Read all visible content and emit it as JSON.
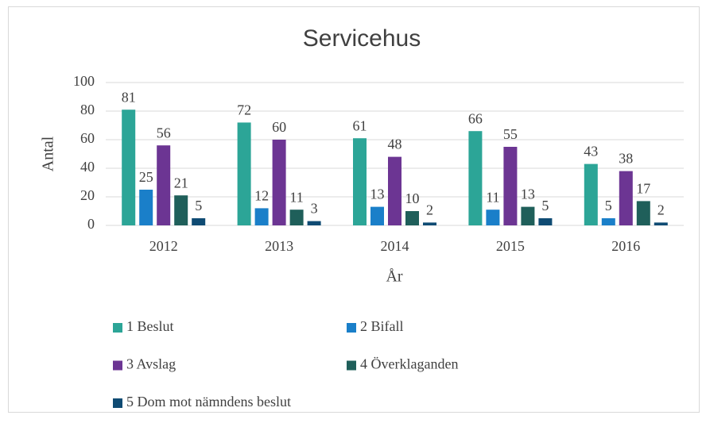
{
  "chart_data": {
    "type": "bar",
    "title": "Servicehus",
    "xlabel": "År",
    "ylabel": "Antal",
    "categories": [
      "2012",
      "2013",
      "2014",
      "2015",
      "2016"
    ],
    "series": [
      {
        "name": "1 Beslut",
        "color": "#2ca597",
        "values": [
          81,
          72,
          61,
          66,
          43
        ]
      },
      {
        "name": "2 Bifall",
        "color": "#1a7fc9",
        "values": [
          25,
          12,
          13,
          11,
          5
        ]
      },
      {
        "name": "3 Avslag",
        "color": "#6c3593",
        "values": [
          56,
          60,
          48,
          55,
          38
        ]
      },
      {
        "name": "4 Överklaganden",
        "color": "#1f5f5a",
        "values": [
          21,
          11,
          10,
          13,
          17
        ]
      },
      {
        "name": "5 Dom mot nämndens beslut",
        "color": "#0f4b73",
        "values": [
          5,
          3,
          2,
          5,
          2
        ]
      }
    ],
    "ylim": [
      0,
      100
    ],
    "yticks": [
      0,
      20,
      40,
      60,
      80,
      100
    ],
    "grid": true,
    "legend": "bottom"
  }
}
